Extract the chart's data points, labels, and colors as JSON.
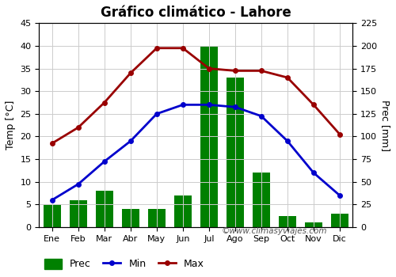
{
  "title": "Gráfico climático - Lahore",
  "months": [
    "Ene",
    "Feb",
    "Mar",
    "Abr",
    "May",
    "Jun",
    "Jul",
    "Ago",
    "Sep",
    "Oct",
    "Nov",
    "Dic"
  ],
  "prec_mm": [
    25,
    30,
    40,
    20,
    20,
    35,
    200,
    165,
    60,
    12,
    5,
    15
  ],
  "temp_min": [
    6,
    9.5,
    14.5,
    19,
    25,
    27,
    27,
    26.5,
    24.5,
    19,
    12,
    7
  ],
  "temp_max": [
    18.5,
    22,
    27.5,
    34,
    39.5,
    39.5,
    35,
    34.5,
    34.5,
    33,
    27,
    20.5
  ],
  "bar_color": "#008000",
  "line_min_color": "#0000CC",
  "line_max_color": "#990000",
  "temp_ylim": [
    0,
    45
  ],
  "temp_yticks": [
    0,
    5,
    10,
    15,
    20,
    25,
    30,
    35,
    40,
    45
  ],
  "prec_ylim": [
    0,
    225
  ],
  "prec_yticks": [
    0,
    25,
    50,
    75,
    100,
    125,
    150,
    175,
    200,
    225
  ],
  "ylabel_left": "Temp [°C]",
  "ylabel_right": "Prec [mm]",
  "watermark": "©www.climasyviajes.com",
  "bg_color": "#ffffff",
  "grid_color": "#cccccc",
  "title_fontsize": 12,
  "label_fontsize": 9,
  "tick_fontsize": 8,
  "legend_fontsize": 9
}
